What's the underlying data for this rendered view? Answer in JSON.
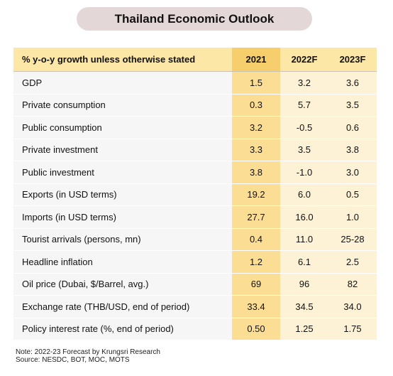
{
  "title": "Thailand Economic Outlook",
  "table": {
    "header": {
      "label": "% y-o-y  growth unless otherwise stated",
      "years": [
        "2021",
        "2022F",
        "2023F"
      ]
    },
    "rows": [
      {
        "label": "GDP",
        "values": [
          "1.5",
          "3.2",
          "3.6"
        ]
      },
      {
        "label": "Private consumption",
        "values": [
          "0.3",
          "5.7",
          "3.5"
        ]
      },
      {
        "label": "Public consumption",
        "values": [
          "3.2",
          "-0.5",
          "0.6"
        ]
      },
      {
        "label": "Private investment",
        "values": [
          "3.3",
          "3.5",
          "3.8"
        ]
      },
      {
        "label": "Public investment",
        "values": [
          "3.8",
          "-1.0",
          "3.0"
        ]
      },
      {
        "label": "Exports (in USD terms)",
        "values": [
          "19.2",
          "6.0",
          "0.5"
        ]
      },
      {
        "label": "Imports (in USD terms)",
        "values": [
          "27.7",
          "16.0",
          "1.0"
        ]
      },
      {
        "label": "Tourist arrivals (persons, mn)",
        "values": [
          "0.4",
          "11.0",
          "25-28"
        ]
      },
      {
        "label": "Headline inflation",
        "values": [
          "1.2",
          "6.1",
          "2.5"
        ]
      },
      {
        "label": "Oil price (Dubai, $/Barrel, avg.)",
        "values": [
          "69",
          "96",
          "82"
        ]
      },
      {
        "label": "Exchange rate (THB/USD, end of period)",
        "values": [
          "33.4",
          "34.5",
          "34.0"
        ]
      },
      {
        "label": "Policy interest rate (%, end of period)",
        "values": [
          "0.50",
          "1.25",
          "1.75"
        ]
      }
    ]
  },
  "notes": {
    "line1": "Note: 2022-23 Forecast by Krungsri Research",
    "line2": "Source: NESDC, BOT, MOC, MOTS"
  },
  "colors": {
    "title_bg": "#e4d7d7",
    "header_bg": "#fde7a7",
    "header_highlight": "#f6cf6c",
    "cell_bg": "#fdf1d6",
    "cell_highlight": "#fcdd94",
    "label_bg": "#f6f6f6"
  }
}
